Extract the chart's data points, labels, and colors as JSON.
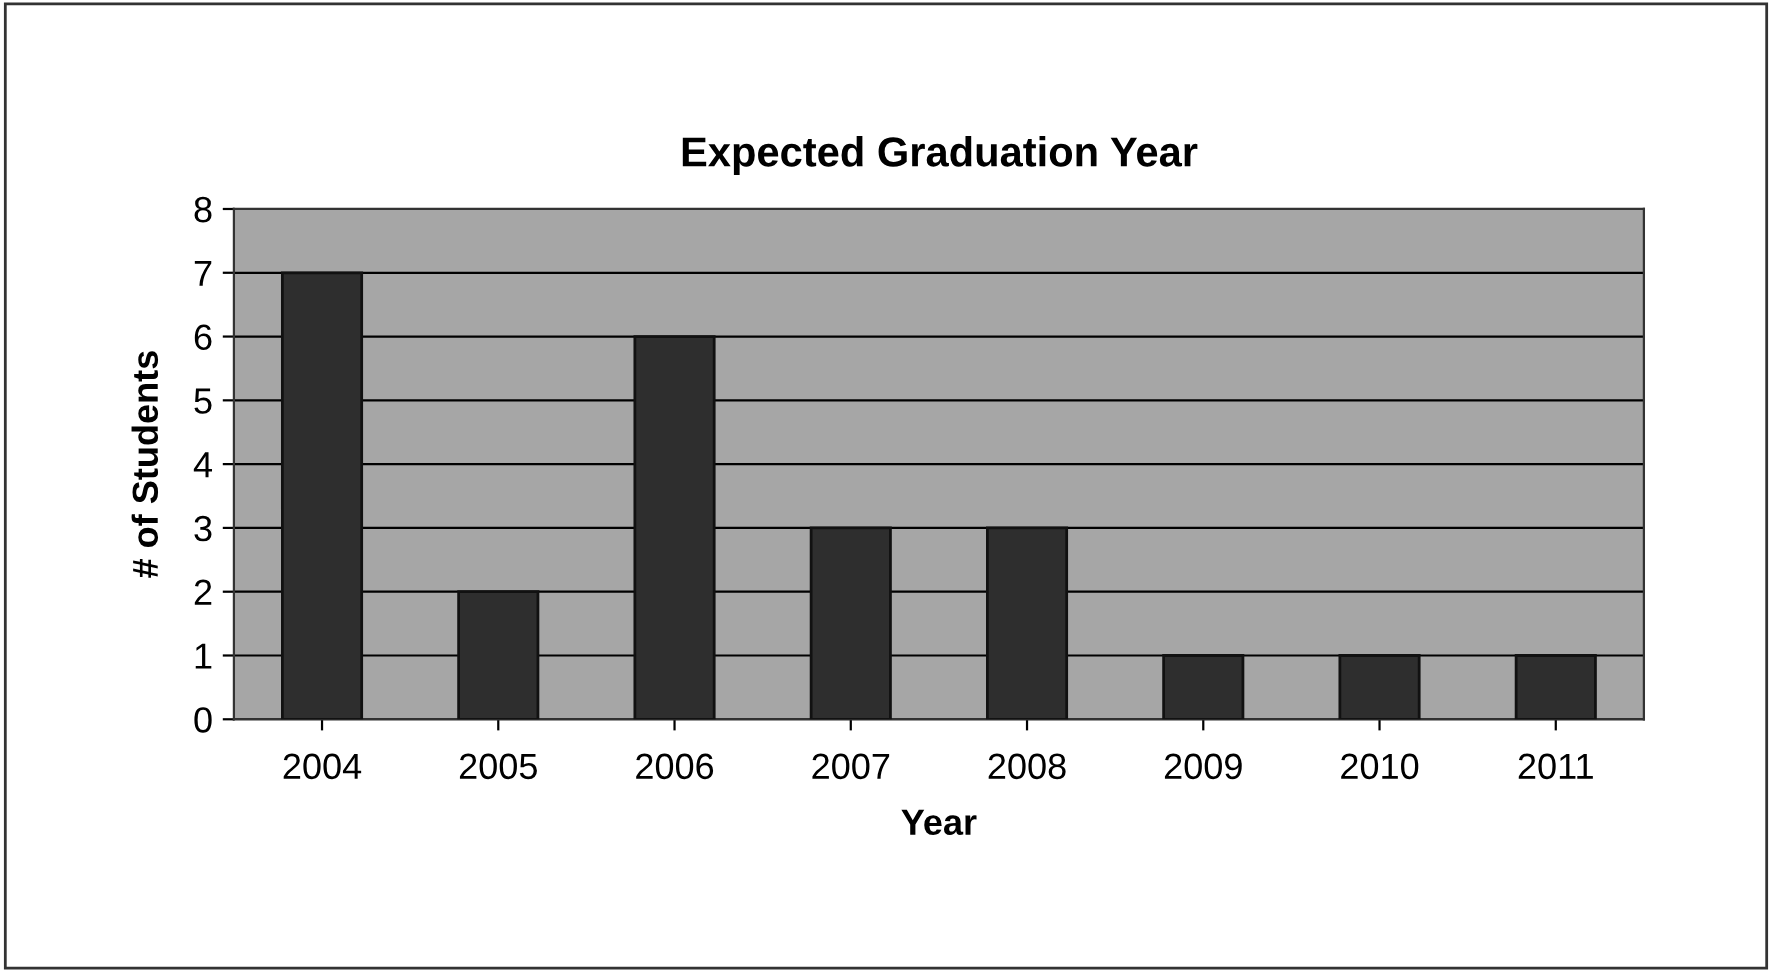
{
  "chart_data": {
    "type": "bar",
    "title": "Expected Graduation Year",
    "xlabel": "Year",
    "ylabel": "# of Students",
    "categories": [
      "2004",
      "2005",
      "2006",
      "2007",
      "2008",
      "2009",
      "2010",
      "2011"
    ],
    "values": [
      7,
      2,
      6,
      3,
      3,
      1,
      1,
      1
    ],
    "color": "#2e2e2e",
    "ylim": [
      0,
      8
    ],
    "yticks": [
      0,
      1,
      2,
      3,
      4,
      5,
      6,
      7,
      8
    ],
    "grid": "y",
    "legend": false
  }
}
